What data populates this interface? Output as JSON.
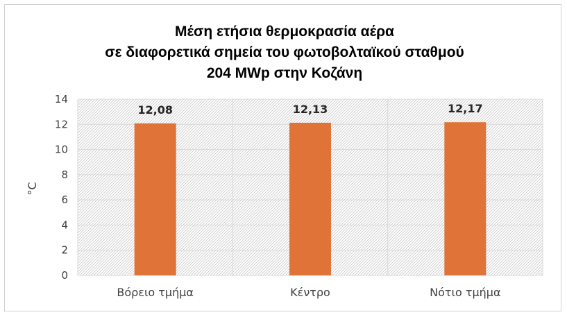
{
  "chart_data": {
    "type": "bar",
    "title": [
      "Μέση ετήσια θερμοκρασία αέρα",
      "σε διαφορετικά σημεία του φωτοβολταϊκού σταθμού",
      "204 MWp στην Κοζάνη"
    ],
    "categories": [
      "Βόρειο τμήμα",
      "Κέντρο",
      "Νότιο τμήμα"
    ],
    "values": [
      12.08,
      12.13,
      12.17
    ],
    "data_labels": [
      "12,08",
      "12,13",
      "12,17"
    ],
    "ylabel": "°C",
    "xlabel": "",
    "ylim": [
      0,
      14
    ],
    "yticks": [
      0,
      2,
      4,
      6,
      8,
      10,
      12,
      14
    ],
    "grid": true,
    "legend": "none",
    "bar_color": "#E07438",
    "plot_pattern": "diagonal-hatch"
  }
}
